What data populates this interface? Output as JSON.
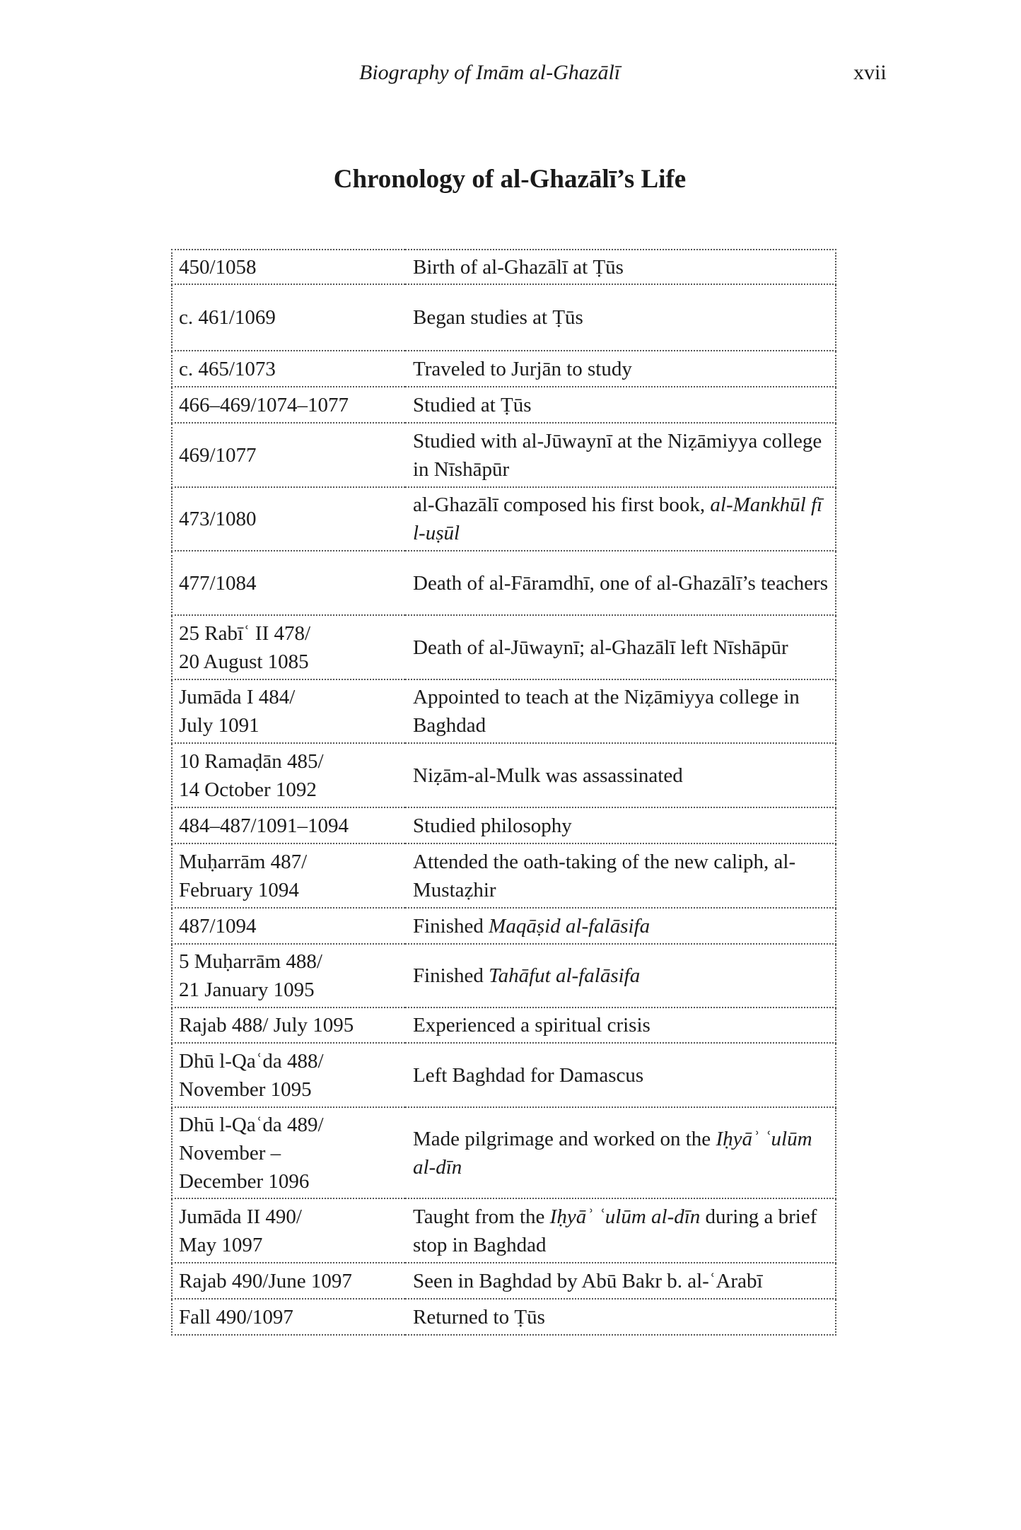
{
  "running_head": {
    "title": "Biography of Imām al-Ghazālī",
    "page_number": "xvii"
  },
  "heading": "Chronology of al-Ghazālī’s Life",
  "rows": [
    {
      "date": "450/1058",
      "event": [
        {
          "t": "Birth of al-Ghazālī at Ṭūs"
        }
      ]
    },
    {
      "date": "c. 461/1069",
      "event": [
        {
          "t": "Began studies at Ṭūs"
        }
      ]
    },
    {
      "date": "c. 465/1073",
      "event": [
        {
          "t": "Traveled to Jurjān to study"
        }
      ]
    },
    {
      "date": "466–469/1074–1077",
      "event": [
        {
          "t": "Studied at Ṭūs"
        }
      ]
    },
    {
      "date": "469/1077",
      "event": [
        {
          "t": "Studied with al-Jūwaynī at the Niẓāmiyya college in Nīshāpūr"
        }
      ]
    },
    {
      "date": "473/1080",
      "event": [
        {
          "t": "al-Ghazālī composed his first book, "
        },
        {
          "t": "al-Mankhūl fī l-uṣūl",
          "i": true
        }
      ]
    },
    {
      "date": "477/1084",
      "event": [
        {
          "t": "Death of al-Fāramdhī, one of al-Ghazālī’s teachers"
        }
      ]
    },
    {
      "date": "25 Rabīʿ II 478/ 20 August 1085",
      "event": [
        {
          "t": "Death of al-Jūwaynī; al-Ghazālī left Nīshāpūr"
        }
      ]
    },
    {
      "date": "Jumāda I 484/ July 1091",
      "event": [
        {
          "t": "Appointed to teach at the Niẓāmiyya college in Baghdad"
        }
      ]
    },
    {
      "date": "10 Ramaḍān 485/ 14 October 1092",
      "event": [
        {
          "t": "Niẓām-al-Mulk was assassinated"
        }
      ]
    },
    {
      "date": "484–487/1091–1094",
      "event": [
        {
          "t": "Studied philosophy"
        }
      ]
    },
    {
      "date": "Muḥarrām 487/ February 1094",
      "event": [
        {
          "t": "Attended the oath-taking of the new caliph, al-Mustaẓhir"
        }
      ]
    },
    {
      "date": "487/1094",
      "event": [
        {
          "t": "Finished "
        },
        {
          "t": "Maqāṣid al-falāsifa",
          "i": true
        }
      ]
    },
    {
      "date": "5 Muḥarrām 488/ 21 January 1095",
      "event": [
        {
          "t": "Finished "
        },
        {
          "t": "Tahāfut al-falāsifa",
          "i": true
        }
      ]
    },
    {
      "date": "Rajab 488/ July 1095",
      "event": [
        {
          "t": "Experienced a spiritual crisis"
        }
      ]
    },
    {
      "date": "Dhū l-Qaʿda 488/ November 1095",
      "event": [
        {
          "t": "Left Baghdad for Damascus"
        }
      ]
    },
    {
      "date": "Dhū l-Qaʿda 489/ November – December 1096",
      "event": [
        {
          "t": "Made pilgrimage and worked on the "
        },
        {
          "t": "Iḥyāʾ ʿulūm al-dīn",
          "i": true
        }
      ]
    },
    {
      "date": "Jumāda II 490/ May 1097",
      "event": [
        {
          "t": "Taught from the "
        },
        {
          "t": "Iḥyāʾ ʿulūm al-dīn",
          "i": true
        },
        {
          "t": " during a brief stop in Baghdad"
        }
      ]
    },
    {
      "date": "Rajab 490/June 1097",
      "event": [
        {
          "t": "Seen in Baghdad by Abū Bakr b. al-ʿArabī"
        }
      ]
    },
    {
      "date": "Fall 490/1097",
      "event": [
        {
          "t": "Returned to Ṭūs"
        }
      ]
    }
  ]
}
